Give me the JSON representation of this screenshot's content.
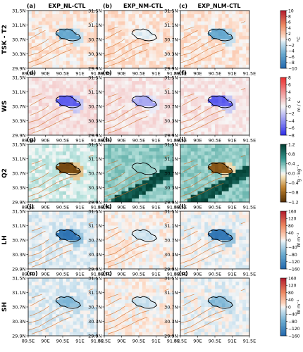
{
  "chart_data": {
    "type": "heatmap",
    "columns": [
      {
        "title": "EXP_NL-CTL"
      },
      {
        "title": "EXP_NM-CTL"
      },
      {
        "title": "EXP_NLM-CTL"
      }
    ],
    "rows": [
      {
        "label": "TSK - T2",
        "unit": "°C",
        "ticks": [
          -10,
          -8,
          -6,
          -4,
          -2,
          0,
          2,
          4,
          6,
          8,
          10
        ],
        "tick_labels": [
          "−10",
          "−8",
          "−6",
          "−4",
          "−2",
          "0",
          "2",
          "4",
          "6",
          "8",
          "10"
        ],
        "range": [
          -10,
          10
        ],
        "cmap": "RdBu_r",
        "panel_values": [
          -5,
          -0.5,
          -5
        ],
        "background": [
          0.6,
          0.8,
          0.7
        ]
      },
      {
        "label": "WS",
        "unit": "m / s",
        "ticks": [
          -8,
          -6,
          -4,
          -2,
          0,
          2,
          4,
          6,
          8
        ],
        "tick_labels": [
          "−8",
          "−6",
          "−4",
          "−2",
          "0",
          "2",
          "4",
          "6",
          "8"
        ],
        "range": [
          -8,
          8
        ],
        "cmap": "bwr",
        "panel_values": [
          -6,
          -3,
          -6
        ],
        "background": [
          0.9,
          0.8,
          0.7
        ]
      },
      {
        "label": "Q2",
        "unit": "g · kg⁻¹",
        "ticks": [
          -1.2,
          -0.8,
          -0.4,
          0,
          0.4,
          0.8,
          1.2
        ],
        "tick_labels": [
          "−1.2",
          "−0.8",
          "−0.4",
          "0.0",
          "0.4",
          "0.8",
          "1.2"
        ],
        "range": [
          -1.2,
          1.2
        ],
        "cmap": "BrBG",
        "panel_values": [
          -1.0,
          0.3,
          -0.9
        ],
        "background": [
          0.1,
          0.3,
          0.3
        ]
      },
      {
        "label": "LH",
        "unit": "W m⁻²",
        "ticks": [
          -160,
          -120,
          -80,
          -40,
          0,
          40,
          80,
          120,
          160
        ],
        "tick_labels": [
          "−160",
          "−120",
          "−80",
          "−40",
          "0",
          "40",
          "80",
          "120",
          "160"
        ],
        "range": [
          -160,
          160
        ],
        "cmap": "RdBu_r",
        "panel_values": [
          -140,
          -20,
          -140
        ],
        "background": [
          -10,
          5,
          -5
        ]
      },
      {
        "label": "SH",
        "unit": "W m⁻²",
        "ticks": [
          -160,
          -120,
          -80,
          -40,
          0,
          40,
          80,
          120,
          160
        ],
        "tick_labels": [
          "−160",
          "−120",
          "−80",
          "−40",
          "0",
          "40",
          "80",
          "120",
          "160"
        ],
        "range": [
          -160,
          160
        ],
        "cmap": "RdBu_r",
        "panel_values": [
          -60,
          -20,
          -60
        ],
        "background": [
          -10,
          5,
          -5
        ]
      }
    ],
    "panel_letters": [
      "(a)",
      "(b)",
      "(c)",
      "(d)",
      "(e)",
      "(f)",
      "(g)",
      "(h)",
      "(i)",
      "(j)",
      "(k)",
      "(l)",
      "(m)",
      "(n)",
      "(o)"
    ],
    "x_ticks": [
      "89.5E",
      "90E",
      "90.5E",
      "91E",
      "91.5E"
    ],
    "y_ticks": [
      "31.5N",
      "31.1N",
      "30.7N",
      "30.3N",
      "29.9N"
    ],
    "xlim": [
      89.5,
      91.5
    ],
    "ylim": [
      29.9,
      31.5
    ],
    "lake_contour_color": "#000000",
    "terrain_contour_color": "#d2691e"
  }
}
